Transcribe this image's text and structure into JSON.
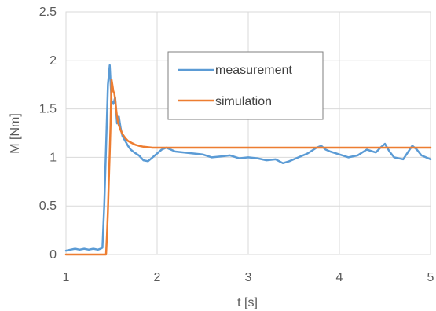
{
  "chart_data": {
    "type": "line",
    "title": "",
    "xlabel": "t [s]",
    "ylabel": "M [Nm]",
    "xlim": [
      1,
      5
    ],
    "ylim": [
      0,
      2.5
    ],
    "x_ticks": [
      "1",
      "2",
      "3",
      "4",
      "5"
    ],
    "y_ticks": [
      "0",
      "0.5",
      "1",
      "1.5",
      "2",
      "2.5"
    ],
    "grid": true,
    "legend_position": "upper-center",
    "series": [
      {
        "name": "measurement",
        "color": "#5b9bd5",
        "x": [
          1.0,
          1.05,
          1.1,
          1.15,
          1.2,
          1.25,
          1.3,
          1.35,
          1.38,
          1.4,
          1.42,
          1.44,
          1.46,
          1.48,
          1.5,
          1.52,
          1.54,
          1.56,
          1.58,
          1.6,
          1.62,
          1.65,
          1.68,
          1.71,
          1.75,
          1.8,
          1.85,
          1.9,
          1.95,
          2.0,
          2.05,
          2.1,
          2.15,
          2.2,
          2.3,
          2.4,
          2.5,
          2.6,
          2.7,
          2.8,
          2.9,
          3.0,
          3.1,
          3.2,
          3.3,
          3.38,
          3.45,
          3.55,
          3.65,
          3.75,
          3.8,
          3.85,
          3.9,
          4.0,
          4.1,
          4.2,
          4.3,
          4.4,
          4.45,
          4.5,
          4.55,
          4.6,
          4.7,
          4.75,
          4.8,
          4.85,
          4.9,
          4.95,
          5.0
        ],
        "y": [
          0.04,
          0.05,
          0.06,
          0.05,
          0.06,
          0.05,
          0.06,
          0.05,
          0.06,
          0.07,
          0.5,
          1.1,
          1.75,
          1.95,
          1.58,
          1.55,
          1.62,
          1.35,
          1.42,
          1.3,
          1.22,
          1.17,
          1.12,
          1.08,
          1.05,
          1.02,
          0.97,
          0.96,
          1.0,
          1.04,
          1.08,
          1.1,
          1.08,
          1.06,
          1.05,
          1.04,
          1.03,
          1.0,
          1.01,
          1.02,
          0.99,
          1.0,
          0.99,
          0.97,
          0.98,
          0.94,
          0.96,
          1.0,
          1.04,
          1.1,
          1.12,
          1.08,
          1.06,
          1.03,
          1.0,
          1.02,
          1.08,
          1.05,
          1.1,
          1.14,
          1.06,
          1.0,
          0.98,
          1.05,
          1.12,
          1.08,
          1.02,
          1.0,
          0.98
        ]
      },
      {
        "name": "simulation",
        "color": "#ed7d31",
        "x": [
          1.0,
          1.3,
          1.44,
          1.45,
          1.46,
          1.47,
          1.48,
          1.49,
          1.5,
          1.51,
          1.52,
          1.53,
          1.54,
          1.55,
          1.56,
          1.57,
          1.58,
          1.6,
          1.62,
          1.65,
          1.68,
          1.72,
          1.76,
          1.8,
          1.85,
          1.9,
          1.95,
          2.0,
          2.1,
          2.2,
          2.5,
          3.0,
          3.5,
          4.0,
          4.5,
          5.0
        ],
        "y": [
          0.0,
          0.0,
          0.0,
          0.2,
          0.45,
          0.75,
          1.05,
          1.35,
          1.8,
          1.74,
          1.68,
          1.66,
          1.6,
          1.5,
          1.42,
          1.37,
          1.33,
          1.28,
          1.24,
          1.2,
          1.17,
          1.15,
          1.13,
          1.12,
          1.11,
          1.105,
          1.1,
          1.1,
          1.1,
          1.1,
          1.1,
          1.1,
          1.1,
          1.1,
          1.1,
          1.1
        ]
      }
    ]
  }
}
